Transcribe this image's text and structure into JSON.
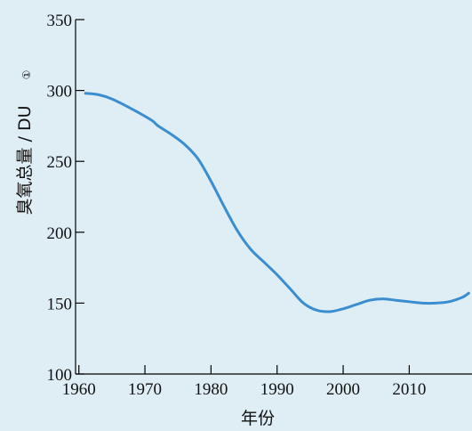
{
  "chart_data": {
    "type": "line",
    "xlabel": "年份",
    "ylabel": "臭氧总量 / DU",
    "ylabel_footnote": "①",
    "xlim": [
      1959.5,
      2019.5
    ],
    "ylim": [
      100,
      350
    ],
    "x_ticks": [
      1960,
      1970,
      1980,
      1990,
      2000,
      2010
    ],
    "x_tick_labels": [
      "1960",
      "1970",
      "1980",
      "1990",
      "2000",
      "2010"
    ],
    "y_ticks": [
      100,
      150,
      200,
      250,
      300,
      350
    ],
    "y_tick_labels": [
      "100",
      "150",
      "200",
      "250",
      "300",
      "350"
    ],
    "grid": false,
    "line_color": "#3a8ecf",
    "series": [
      {
        "x": [
          1961,
          1963,
          1965,
          1968,
          1971,
          1972,
          1974,
          1976,
          1978,
          1980,
          1982,
          1984,
          1986,
          1988,
          1990,
          1992,
          1994,
          1996,
          1998,
          2000,
          2002,
          2004,
          2006,
          2008,
          2010,
          2012,
          2014,
          2016,
          2018,
          2019
        ],
        "y": [
          298,
          297,
          294,
          287,
          279,
          275,
          269,
          262,
          252,
          236,
          218,
          201,
          188,
          179,
          170,
          160,
          150,
          145,
          144,
          146,
          149,
          152,
          153,
          152,
          151,
          150,
          150,
          151,
          154,
          157
        ]
      }
    ]
  }
}
